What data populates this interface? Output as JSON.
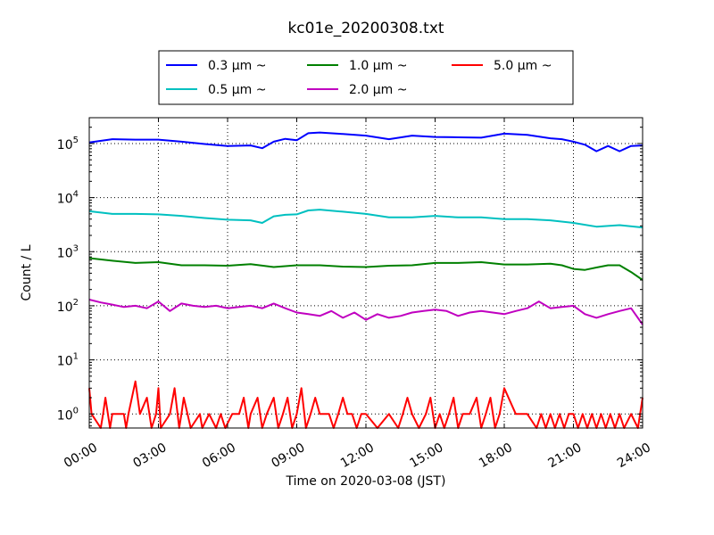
{
  "chart_data": {
    "type": "line",
    "title": "kc01e_20200308.txt",
    "xlabel": "Time on 2020-03-08 (JST)",
    "ylabel": "Count / L",
    "y_scale": "log",
    "ylim": [
      0.55,
      300000
    ],
    "xlim": [
      "00:00",
      "24:00"
    ],
    "x_unit": "hours",
    "x_ticks": [
      "00:00",
      "03:00",
      "06:00",
      "09:00",
      "12:00",
      "15:00",
      "18:00",
      "21:00",
      "24:00"
    ],
    "y_ticks": [
      {
        "base": "10",
        "exp": "0",
        "value": 1
      },
      {
        "base": "10",
        "exp": "1",
        "value": 10
      },
      {
        "base": "10",
        "exp": "2",
        "value": 100
      },
      {
        "base": "10",
        "exp": "3",
        "value": 1000
      },
      {
        "base": "10",
        "exp": "4",
        "value": 10000
      },
      {
        "base": "10",
        "exp": "5",
        "value": 100000
      }
    ],
    "grid": true,
    "legend_position": "top-center",
    "series": [
      {
        "name": "0.3 μm ~",
        "color": "#0000ff",
        "x": [
          0,
          1,
          2,
          3,
          4,
          5,
          6,
          7,
          7.5,
          8,
          8.5,
          9,
          9.5,
          10,
          11,
          12,
          13,
          14,
          15,
          16,
          17,
          18,
          19,
          20,
          20.5,
          21,
          21.5,
          22,
          22.5,
          23,
          23.5,
          24
        ],
        "y": [
          105000,
          120000,
          118000,
          118000,
          108000,
          98000,
          90000,
          92000,
          82000,
          108000,
          122000,
          115000,
          155000,
          160000,
          150000,
          140000,
          120000,
          140000,
          132000,
          130000,
          128000,
          152000,
          145000,
          125000,
          120000,
          108000,
          95000,
          72000,
          90000,
          72000,
          90000,
          92000
        ]
      },
      {
        "name": "0.5 μm ~",
        "color": "#00c0c0",
        "x": [
          0,
          1,
          2,
          3,
          4,
          5,
          6,
          7,
          7.5,
          8,
          8.5,
          9,
          9.5,
          10,
          11,
          12,
          13,
          14,
          15,
          16,
          17,
          18,
          19,
          20,
          21,
          22,
          23,
          24
        ],
        "y": [
          5600,
          5000,
          5000,
          4900,
          4600,
          4200,
          3900,
          3800,
          3400,
          4500,
          4800,
          4900,
          5800,
          6000,
          5500,
          5000,
          4300,
          4300,
          4600,
          4300,
          4300,
          4000,
          4000,
          3800,
          3400,
          2900,
          3100,
          2800
        ]
      },
      {
        "name": "1.0 μm ~",
        "color": "#008000",
        "x": [
          0,
          1,
          2,
          3,
          4,
          5,
          6,
          7,
          8,
          9,
          10,
          11,
          12,
          13,
          14,
          15,
          16,
          17,
          18,
          19,
          20,
          20.5,
          21,
          21.5,
          22,
          22.5,
          23,
          23.5,
          24
        ],
        "y": [
          760,
          680,
          620,
          640,
          560,
          560,
          550,
          590,
          520,
          560,
          560,
          530,
          520,
          550,
          560,
          620,
          620,
          640,
          580,
          580,
          600,
          560,
          480,
          460,
          510,
          560,
          560,
          420,
          300
        ]
      },
      {
        "name": "2.0 μm ~",
        "color": "#c000c0",
        "x": [
          0,
          0.5,
          1,
          1.5,
          2,
          2.5,
          3,
          3.5,
          4,
          4.5,
          5,
          5.5,
          6,
          6.5,
          7,
          7.5,
          8,
          8.5,
          9,
          9.5,
          10,
          10.5,
          11,
          11.5,
          12,
          12.5,
          13,
          13.5,
          14,
          14.5,
          15,
          15.5,
          16,
          16.5,
          17,
          17.5,
          18,
          18.5,
          19,
          19.5,
          20,
          20.5,
          21,
          21.5,
          22,
          22.5,
          23,
          23.5,
          24
        ],
        "y": [
          130,
          115,
          105,
          95,
          100,
          90,
          120,
          80,
          110,
          100,
          95,
          100,
          90,
          95,
          100,
          90,
          110,
          90,
          75,
          70,
          65,
          80,
          60,
          75,
          55,
          70,
          60,
          65,
          75,
          80,
          85,
          80,
          65,
          75,
          80,
          75,
          70,
          80,
          90,
          120,
          90,
          95,
          100,
          70,
          60,
          70,
          80,
          90,
          45
        ]
      },
      {
        "name": "5.0 μm ~",
        "color": "#ff0000",
        "x": [
          0,
          0.1,
          0.5,
          0.6,
          0.7,
          0.9,
          1.0,
          1.5,
          1.6,
          1.7,
          2,
          2.2,
          2.5,
          2.7,
          2.9,
          3,
          3.1,
          3.5,
          3.7,
          3.9,
          4,
          4.1,
          4.4,
          4.8,
          4.9,
          5.2,
          5.5,
          5.7,
          5.9,
          6.2,
          6.5,
          6.7,
          6.9,
          7,
          7.3,
          7.5,
          7.7,
          8,
          8.2,
          8.4,
          8.6,
          8.8,
          9,
          9.2,
          9.4,
          9.6,
          9.8,
          10,
          10.4,
          10.6,
          10.8,
          11,
          11.2,
          11.4,
          11.6,
          11.8,
          12,
          12.5,
          13,
          13.4,
          13.6,
          13.8,
          14,
          14.3,
          14.6,
          14.8,
          15,
          15.2,
          15.4,
          15.6,
          15.8,
          16,
          16.2,
          16.5,
          16.8,
          17,
          17.2,
          17.4,
          17.6,
          17.8,
          18,
          18.5,
          19,
          19.4,
          19.6,
          19.8,
          20,
          20.2,
          20.4,
          20.6,
          20.8,
          21,
          21.2,
          21.4,
          21.6,
          21.8,
          22,
          22.2,
          22.4,
          22.6,
          22.8,
          23,
          23.2,
          23.5,
          23.8,
          24
        ],
        "y": [
          3,
          1,
          0.55,
          1,
          2,
          0.55,
          1,
          1,
          0.55,
          1,
          4,
          1,
          2,
          0.55,
          1,
          3,
          0.55,
          1,
          3,
          0.55,
          1,
          2,
          0.55,
          1,
          0.55,
          1,
          0.55,
          1,
          0.55,
          1,
          1,
          2,
          0.55,
          1,
          2,
          0.55,
          1,
          2,
          0.55,
          1,
          2,
          0.55,
          1,
          3,
          0.55,
          1,
          2,
          1,
          1,
          0.55,
          1,
          2,
          1,
          1,
          0.55,
          1,
          1,
          0.55,
          1,
          0.55,
          1,
          2,
          1,
          0.55,
          1,
          2,
          0.55,
          1,
          0.55,
          1,
          2,
          0.55,
          1,
          1,
          2,
          0.55,
          1,
          2,
          0.55,
          1,
          3,
          1,
          1,
          0.55,
          1,
          0.55,
          1,
          0.55,
          1,
          0.55,
          1,
          1,
          0.55,
          1,
          0.55,
          1,
          0.55,
          1,
          0.55,
          1,
          0.55,
          1,
          0.55,
          1,
          0.55,
          2
        ]
      }
    ]
  }
}
